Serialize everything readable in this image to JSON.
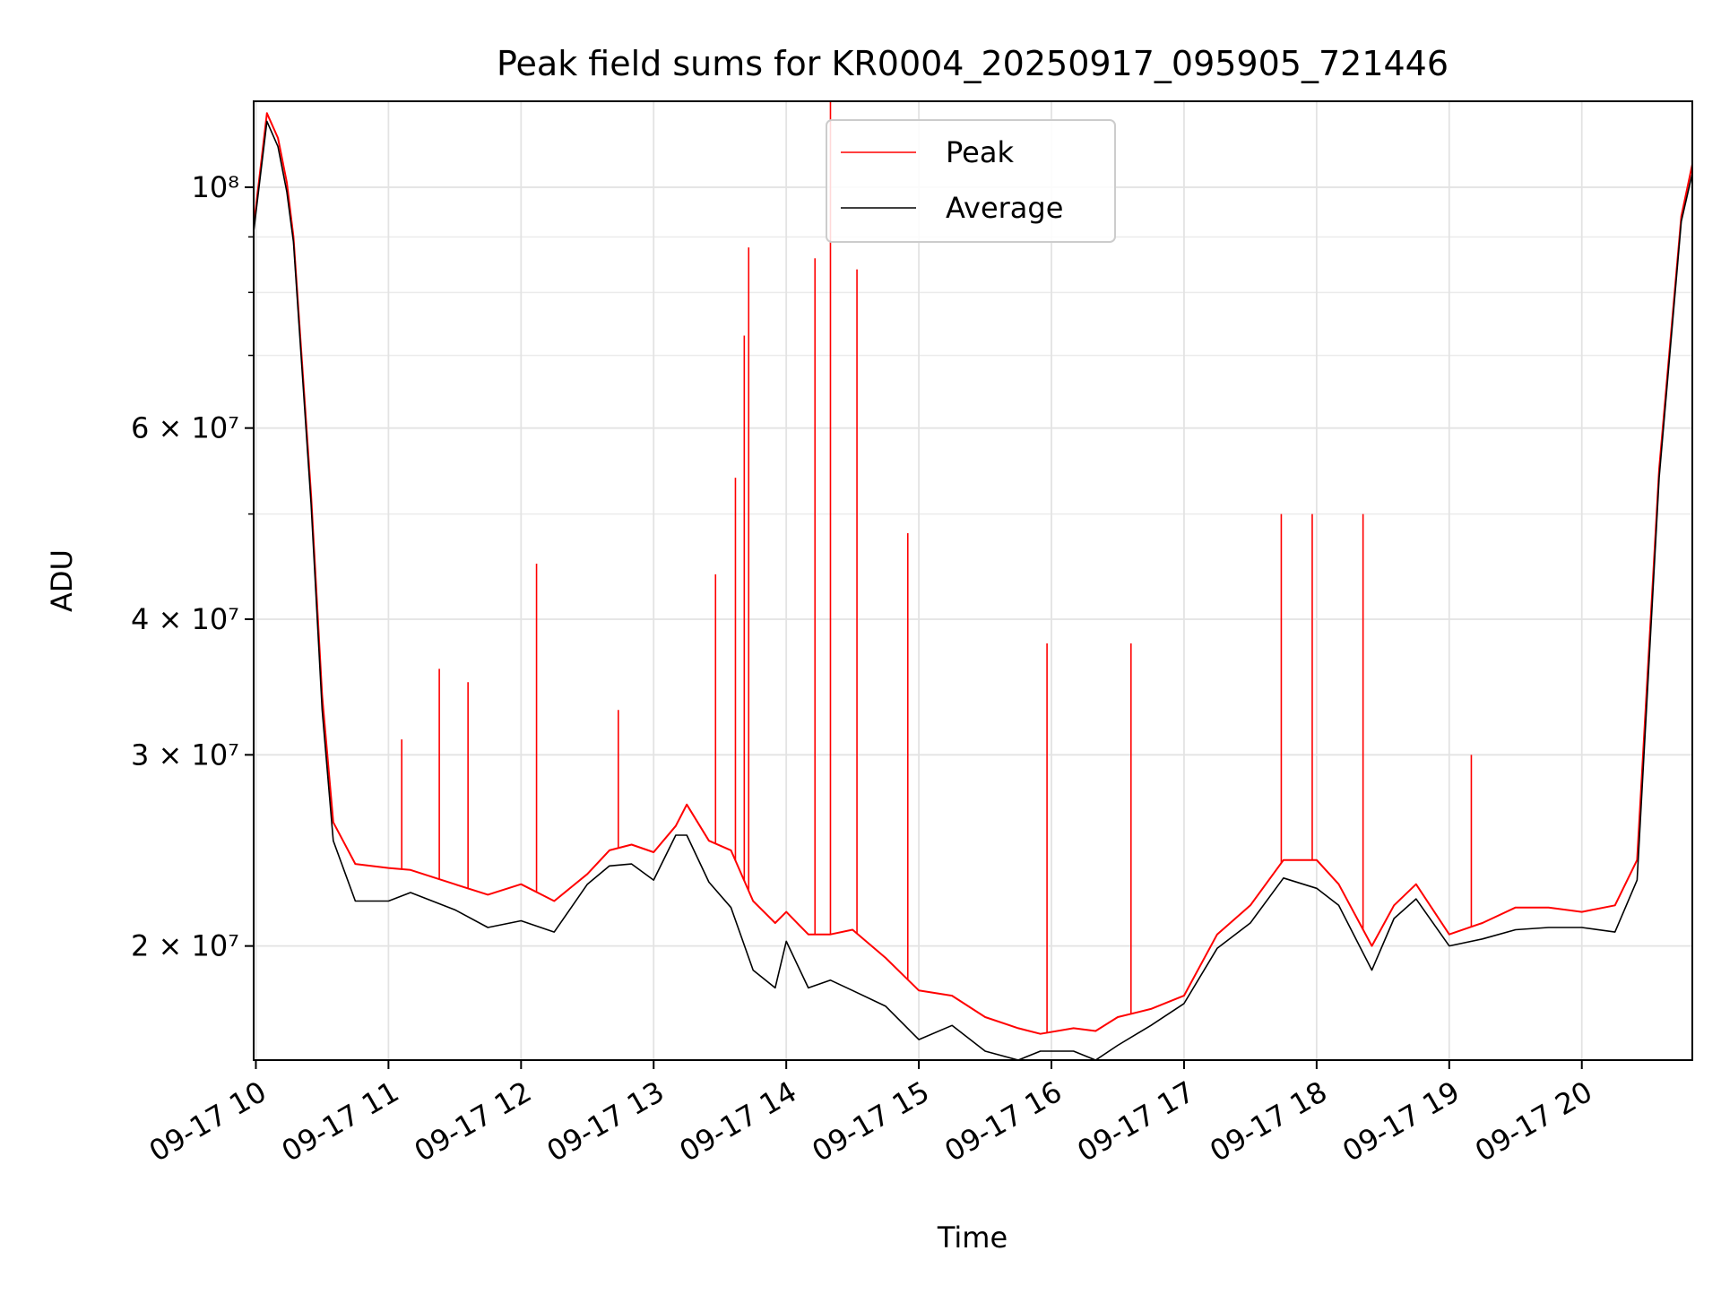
{
  "chart_data": {
    "type": "line",
    "title": "Peak field sums for KR0004_20250917_095905_721446",
    "xlabel": "Time",
    "ylabel": "ADU",
    "x_ticks": [
      "09-17 10",
      "09-17 11",
      "09-17 12",
      "09-17 13",
      "09-17 14",
      "09-17 15",
      "09-17 16",
      "09-17 17",
      "09-17 18",
      "09-17 19",
      "09-17 20"
    ],
    "y_ticks": [
      {
        "value": 20000000,
        "label": "2 × 10⁷"
      },
      {
        "value": 30000000,
        "label": "3 × 10⁷"
      },
      {
        "value": 40000000,
        "label": "4 × 10⁷"
      },
      {
        "value": 60000000,
        "label": "6 × 10⁷"
      },
      {
        "value": 100000000,
        "label": "10⁸"
      }
    ],
    "y_scale": "log",
    "xlim": [
      "2025-09-17 09:59",
      "2025-09-17 20:50"
    ],
    "ylim": [
      15700000,
      120000000
    ],
    "grid": true,
    "legend_position": "upper-center",
    "colors": {
      "peak": "#ff0000",
      "average": "#000000"
    },
    "series": [
      {
        "name": "Peak",
        "x": [
          "09:59",
          "10:05",
          "10:10",
          "10:14",
          "10:17",
          "10:25",
          "10:30",
          "10:35",
          "10:45",
          "11:00",
          "11:10",
          "11:30",
          "11:45",
          "12:00",
          "12:15",
          "12:30",
          "12:40",
          "12:50",
          "13:00",
          "13:10",
          "13:15",
          "13:25",
          "13:35",
          "13:45",
          "13:55",
          "14:00",
          "14:10",
          "14:20",
          "14:30",
          "14:45",
          "15:00",
          "15:15",
          "15:30",
          "15:45",
          "15:55",
          "16:10",
          "16:20",
          "16:30",
          "16:45",
          "17:00",
          "17:15",
          "17:30",
          "17:45",
          "18:00",
          "18:10",
          "18:25",
          "18:35",
          "18:45",
          "19:00",
          "19:15",
          "19:30",
          "19:45",
          "20:00",
          "20:15",
          "20:25",
          "20:35",
          "20:45",
          "20:50"
        ],
        "y": [
          92000000,
          117000000,
          111000000,
          101000000,
          90000000,
          52000000,
          34000000,
          26000000,
          23800000,
          23600000,
          23500000,
          22800000,
          22300000,
          22800000,
          22000000,
          23300000,
          24500000,
          24800000,
          24400000,
          25800000,
          27000000,
          25000000,
          24500000,
          22000000,
          21000000,
          21500000,
          20500000,
          20500000,
          20700000,
          19500000,
          18200000,
          18000000,
          17200000,
          16800000,
          16600000,
          16800000,
          16700000,
          17200000,
          17500000,
          18000000,
          20500000,
          21800000,
          24000000,
          24000000,
          22800000,
          20000000,
          21800000,
          22800000,
          20500000,
          21000000,
          21700000,
          21700000,
          21500000,
          21800000,
          24000000,
          55000000,
          94000000,
          105000000
        ],
        "spikes": [
          {
            "x": "11:06",
            "y": 31000000
          },
          {
            "x": "11:23",
            "y": 36000000
          },
          {
            "x": "11:36",
            "y": 35000000
          },
          {
            "x": "12:07",
            "y": 45000000
          },
          {
            "x": "12:44",
            "y": 33000000
          },
          {
            "x": "13:28",
            "y": 44000000
          },
          {
            "x": "13:37",
            "y": 54000000
          },
          {
            "x": "13:41",
            "y": 73000000
          },
          {
            "x": "13:43",
            "y": 88000000
          },
          {
            "x": "14:13",
            "y": 86000000
          },
          {
            "x": "14:20",
            "y": 120000000
          },
          {
            "x": "14:32",
            "y": 84000000
          },
          {
            "x": "14:55",
            "y": 48000000
          },
          {
            "x": "15:58",
            "y": 38000000
          },
          {
            "x": "16:36",
            "y": 38000000
          },
          {
            "x": "17:44",
            "y": 50000000
          },
          {
            "x": "17:58",
            "y": 50000000
          },
          {
            "x": "18:21",
            "y": 50000000
          },
          {
            "x": "19:10",
            "y": 30000000
          }
        ]
      },
      {
        "name": "Average",
        "x": [
          "09:59",
          "10:05",
          "10:10",
          "10:14",
          "10:17",
          "10:25",
          "10:30",
          "10:35",
          "10:45",
          "11:00",
          "11:10",
          "11:30",
          "11:45",
          "12:00",
          "12:15",
          "12:30",
          "12:40",
          "12:50",
          "13:00",
          "13:10",
          "13:15",
          "13:25",
          "13:35",
          "13:45",
          "13:55",
          "14:00",
          "14:10",
          "14:20",
          "14:30",
          "14:45",
          "15:00",
          "15:15",
          "15:30",
          "15:45",
          "15:55",
          "16:10",
          "16:20",
          "16:30",
          "16:45",
          "17:00",
          "17:15",
          "17:30",
          "17:45",
          "18:00",
          "18:10",
          "18:25",
          "18:35",
          "18:45",
          "19:00",
          "19:15",
          "19:30",
          "19:45",
          "20:00",
          "20:15",
          "20:25",
          "20:35",
          "20:45",
          "20:50"
        ],
        "y": [
          91000000,
          115000000,
          109000000,
          99000000,
          89000000,
          51000000,
          33000000,
          25000000,
          22000000,
          22000000,
          22400000,
          21600000,
          20800000,
          21100000,
          20600000,
          22800000,
          23700000,
          23800000,
          23000000,
          25300000,
          25300000,
          22900000,
          21700000,
          19000000,
          18300000,
          20200000,
          18300000,
          18600000,
          18200000,
          17600000,
          16400000,
          16900000,
          16000000,
          15700000,
          16000000,
          16000000,
          15700000,
          16200000,
          16900000,
          17700000,
          19900000,
          21000000,
          23100000,
          22600000,
          21800000,
          19000000,
          21200000,
          22100000,
          20000000,
          20300000,
          20700000,
          20800000,
          20800000,
          20600000,
          23000000,
          54000000,
          93000000,
          103000000
        ]
      }
    ]
  }
}
